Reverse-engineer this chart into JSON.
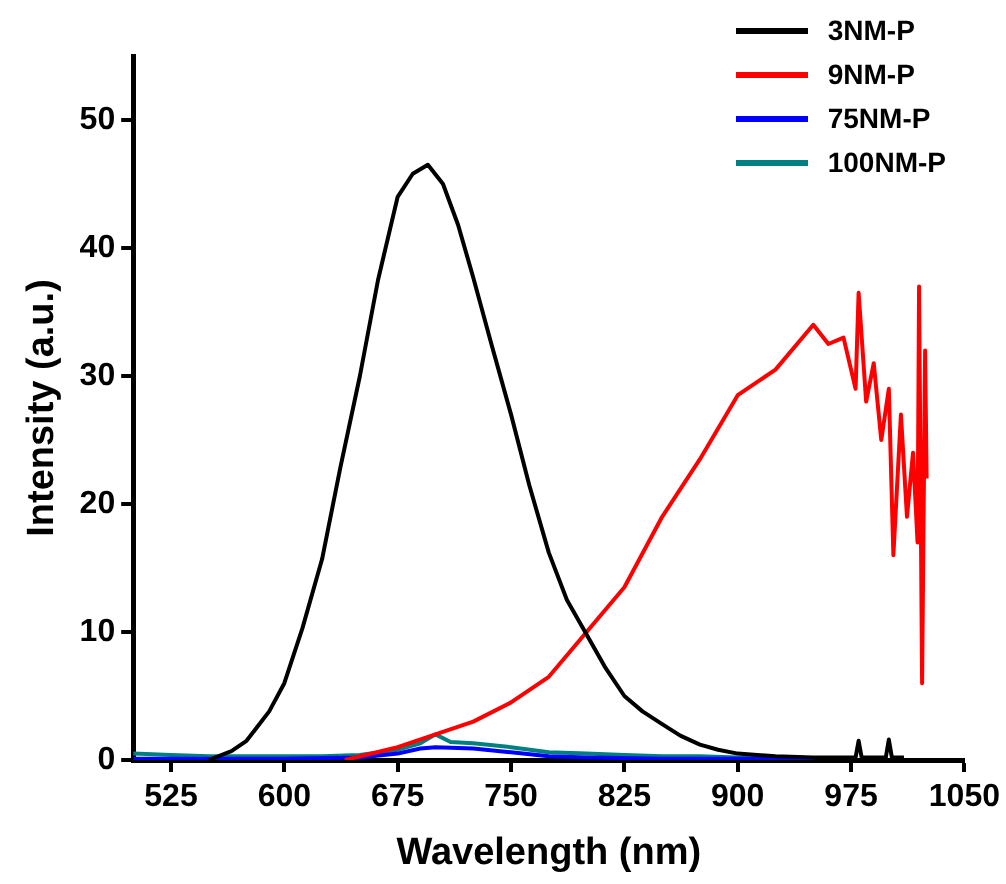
{
  "chart_data": {
    "type": "line",
    "xlabel": "Wavelength (nm)",
    "ylabel": "Intensity (a.u.)",
    "xlim": [
      500,
      1050
    ],
    "xticks": [
      525,
      600,
      675,
      750,
      825,
      900,
      975,
      1050
    ],
    "ylim": [
      0,
      55
    ],
    "yticks": [
      0,
      10,
      20,
      30,
      40,
      50
    ],
    "legend": "top right",
    "grid": false,
    "marker": "none",
    "line_style": "solid",
    "series": [
      {
        "name": "3NM-P",
        "color": "#000000",
        "x": [
          550,
          565,
          575,
          590,
          600,
          612,
          625,
          637,
          650,
          662,
          675,
          685,
          695,
          705,
          715,
          725,
          737,
          750,
          762,
          775,
          787,
          800,
          812,
          825,
          837,
          850,
          862,
          875,
          887,
          900,
          925,
          950,
          965,
          978,
          980,
          982,
          998,
          1000,
          1002,
          1010
        ],
        "values": [
          0,
          0.7,
          1.5,
          3.8,
          6,
          10.3,
          15.7,
          22.8,
          30,
          37.5,
          44,
          45.8,
          46.5,
          45,
          41.8,
          37.7,
          32.5,
          27,
          21.5,
          16.2,
          12.5,
          9.8,
          7.3,
          5,
          3.8,
          2.8,
          1.9,
          1.2,
          0.8,
          0.5,
          0.3,
          0.2,
          0.2,
          0.2,
          1.5,
          0.2,
          0.2,
          1.6,
          0.2,
          0.2
        ]
      },
      {
        "name": "9NM-P",
        "color": "#ff0000",
        "x": [
          640,
          675,
          700,
          725,
          750,
          775,
          800,
          825,
          850,
          875,
          900,
          925,
          950,
          960,
          970,
          978,
          980,
          985,
          990,
          995,
          1000,
          1003,
          1008,
          1012,
          1016,
          1019,
          1020,
          1022,
          1024,
          1025
        ],
        "values": [
          0,
          1,
          2,
          3,
          4.5,
          6.5,
          10,
          13.5,
          19,
          23.5,
          28.5,
          30.5,
          34,
          32.5,
          33,
          29,
          36.5,
          28,
          31,
          25,
          29,
          16,
          27,
          19,
          24,
          17,
          37,
          6,
          32,
          22
        ]
      },
      {
        "name": "75NM-P",
        "color": "#0000ff",
        "x": [
          500,
          550,
          600,
          650,
          675,
          690,
          700,
          725,
          750,
          775,
          800,
          850,
          900,
          950
        ],
        "values": [
          0.1,
          0.1,
          0.1,
          0.2,
          0.5,
          0.9,
          1,
          0.9,
          0.6,
          0.3,
          0.2,
          0.1,
          0.1,
          0.1
        ]
      },
      {
        "name": "100NM-P",
        "color": "#008080",
        "x": [
          500,
          525,
          550,
          575,
          600,
          625,
          650,
          675,
          690,
          700,
          710,
          725,
          750,
          775,
          800,
          825,
          850,
          875,
          900,
          950
        ],
        "values": [
          0.5,
          0.4,
          0.3,
          0.3,
          0.3,
          0.3,
          0.4,
          0.8,
          1.3,
          2,
          1.4,
          1.3,
          1,
          0.6,
          0.5,
          0.4,
          0.3,
          0.3,
          0.2,
          0.1
        ]
      }
    ]
  }
}
